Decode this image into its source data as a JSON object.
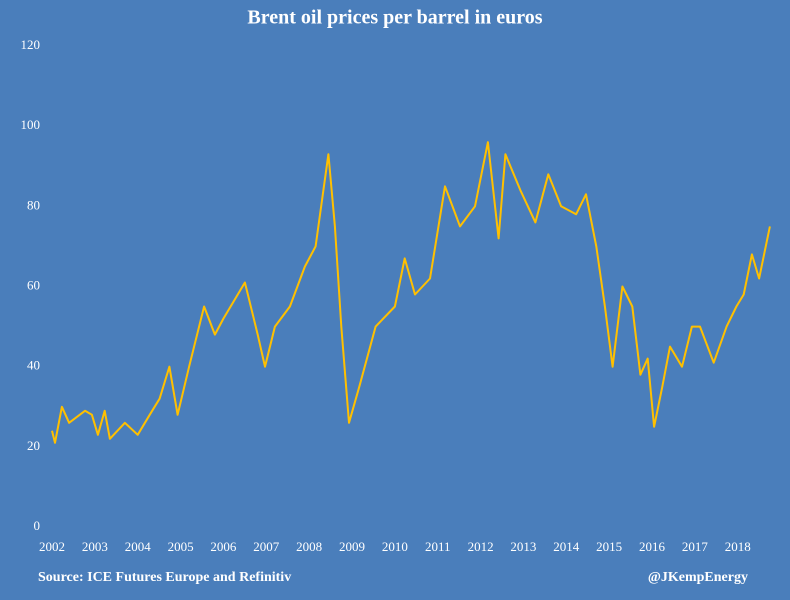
{
  "chart_data": {
    "type": "line",
    "title": "Brent oil prices per barrel in euros",
    "source": "Source: ICE Futures Europe and Refinitiv",
    "credit": "@JKempEnergy",
    "xlim": [
      2002,
      2018.8
    ],
    "xticks": [
      2002,
      2003,
      2004,
      2005,
      2006,
      2007,
      2008,
      2009,
      2010,
      2011,
      2012,
      2013,
      2014,
      2015,
      2016,
      2017,
      2018
    ],
    "ylim": [
      0,
      120
    ],
    "yticks": [
      0,
      20,
      40,
      60,
      80,
      100,
      120
    ],
    "grid": false,
    "series": [
      {
        "name": "Brent",
        "color": "#ffc000",
        "x": [
          2002.0,
          2002.07,
          2002.23,
          2002.4,
          2002.77,
          2002.93,
          2003.07,
          2003.23,
          2003.35,
          2003.7,
          2004.0,
          2004.28,
          2004.51,
          2004.74,
          2004.93,
          2005.2,
          2005.55,
          2005.8,
          2006.0,
          2006.5,
          2006.8,
          2006.97,
          2007.2,
          2007.55,
          2007.9,
          2008.15,
          2008.45,
          2008.6,
          2008.75,
          2008.93,
          2009.17,
          2009.55,
          2010.0,
          2010.23,
          2010.47,
          2010.82,
          2011.17,
          2011.52,
          2011.87,
          2012.17,
          2012.42,
          2012.58,
          2012.93,
          2013.28,
          2013.58,
          2013.88,
          2014.23,
          2014.46,
          2014.7,
          2014.9,
          2015.08,
          2015.31,
          2015.54,
          2015.73,
          2015.9,
          2016.05,
          2016.24,
          2016.42,
          2016.7,
          2016.93,
          2017.12,
          2017.44,
          2017.74,
          2017.97,
          2018.14,
          2018.33,
          2018.5,
          2018.75
        ],
        "values": [
          24,
          21,
          30,
          26,
          29,
          28,
          23,
          29,
          22,
          26,
          23,
          28,
          32,
          40,
          28,
          40,
          55,
          48,
          52,
          61,
          48,
          40,
          50,
          55,
          65,
          70,
          93,
          75,
          50,
          26,
          35,
          50,
          55,
          67,
          58,
          62,
          85,
          75,
          80,
          96,
          72,
          93,
          84,
          76,
          88,
          80,
          78,
          83,
          70,
          55,
          40,
          60,
          55,
          38,
          42,
          25,
          35,
          45,
          40,
          50,
          50,
          41,
          50,
          55,
          58,
          68,
          62,
          75
        ]
      }
    ]
  }
}
